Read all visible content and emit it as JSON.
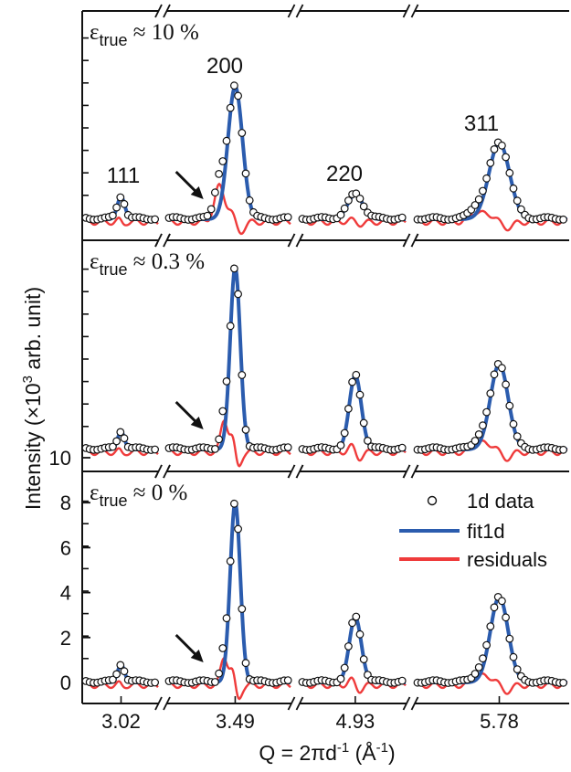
{
  "chart_data": {
    "type": "line",
    "xlabel_parts": [
      "Q = 2πd",
      "-1",
      " (Å",
      "-1",
      ")"
    ],
    "ylabel_parts": [
      "Intensity (×10",
      "3",
      " arb. unit)"
    ],
    "x_tick_labels": [
      "3.02",
      "3.49",
      "4.93",
      "5.78"
    ],
    "y_tick_labels": [
      "0",
      "2",
      "4",
      "6",
      "8",
      "10"
    ],
    "ylim": [
      -1,
      10
    ],
    "broken_x_axis": true,
    "segments": [
      {
        "id": "111",
        "center": 3.02,
        "x_range": [
          2.96,
          3.06
        ]
      },
      {
        "id": "200",
        "center": 3.49,
        "x_range": [
          3.4,
          3.53
        ]
      },
      {
        "id": "220",
        "center": 4.93,
        "x_range": [
          4.88,
          4.97
        ]
      },
      {
        "id": "311",
        "center": 5.78,
        "x_range": [
          5.7,
          5.82
        ]
      }
    ],
    "peak_labels": [
      "111",
      "200",
      "220",
      "311"
    ],
    "legend": {
      "placement": "lower-panel-right",
      "entries": [
        {
          "label": "1d data",
          "marker": "open-circle",
          "color": "#111111"
        },
        {
          "label": "fit1d",
          "marker": "line",
          "color": "#2b5cae"
        },
        {
          "label": "residuals",
          "marker": "line",
          "color": "#ef3b3b"
        }
      ]
    },
    "panels": [
      {
        "strain_label": {
          "symbol": "ε",
          "sub": "true",
          "rest": " ≈ 10 %"
        },
        "peaks": [
          {
            "segment": "111",
            "height": 1.0,
            "width": 0.22,
            "shoulder": 0
          },
          {
            "segment": "200",
            "height": 5.9,
            "width": 0.26,
            "shoulder": 0.12
          },
          {
            "segment": "220",
            "height": 1.1,
            "width": 0.32,
            "shoulder": 0
          },
          {
            "segment": "311",
            "height": 3.4,
            "width": 0.3,
            "shoulder": 0.06
          }
        ]
      },
      {
        "strain_label": {
          "symbol": "ε",
          "sub": "true",
          "rest": " ≈ 0.3 %"
        },
        "peaks": [
          {
            "segment": "111",
            "height": 0.8,
            "width": 0.2,
            "shoulder": 0
          },
          {
            "segment": "200",
            "height": 8.1,
            "width": 0.18,
            "shoulder": 0.08
          },
          {
            "segment": "220",
            "height": 3.3,
            "width": 0.25,
            "shoulder": 0
          },
          {
            "segment": "311",
            "height": 3.8,
            "width": 0.26,
            "shoulder": 0.05
          }
        ]
      },
      {
        "strain_label": {
          "symbol": "ε",
          "sub": "true",
          "rest": " ≈ 0 %"
        },
        "peaks": [
          {
            "segment": "111",
            "height": 0.8,
            "width": 0.2,
            "shoulder": 0
          },
          {
            "segment": "200",
            "height": 8.0,
            "width": 0.18,
            "shoulder": 0.07
          },
          {
            "segment": "220",
            "height": 2.9,
            "width": 0.25,
            "shoulder": 0
          },
          {
            "segment": "311",
            "height": 3.8,
            "width": 0.26,
            "shoulder": 0.05
          }
        ]
      }
    ]
  }
}
